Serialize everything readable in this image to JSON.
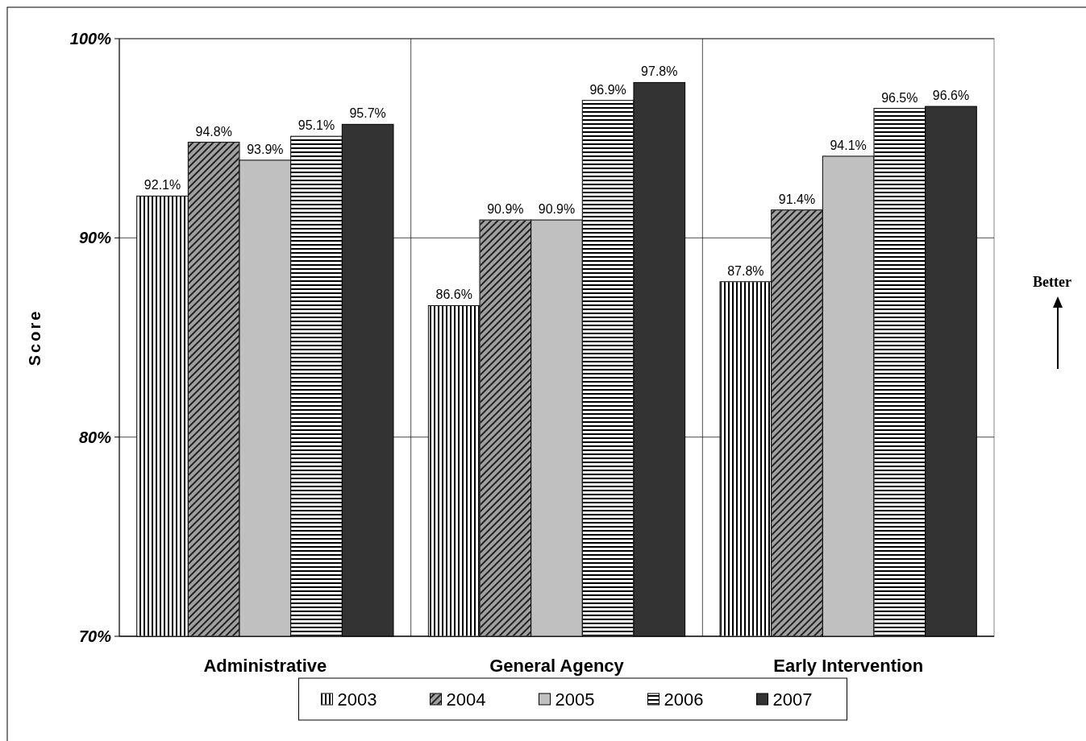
{
  "chart_data": {
    "type": "bar",
    "ylabel": "Score",
    "categories": [
      "Administrative",
      "General Agency",
      "Early Intervention"
    ],
    "series": [
      {
        "name": "2003",
        "color": "#ffffff",
        "values": [
          92.1,
          86.6,
          87.8
        ]
      },
      {
        "name": "2004",
        "color": "#a0a0a0",
        "values": [
          94.8,
          90.9,
          91.4
        ]
      },
      {
        "name": "2005",
        "color": "#c0c0c0",
        "values": [
          93.9,
          90.9,
          94.1
        ]
      },
      {
        "name": "2006",
        "color": "#ffffff",
        "values": [
          95.1,
          96.9,
          96.5
        ]
      },
      {
        "name": "2007",
        "color": "#333333",
        "values": [
          95.7,
          97.8,
          96.6
        ]
      }
    ],
    "ylim": [
      70,
      100
    ],
    "yticks": [
      {
        "value": 70,
        "label": "70%"
      },
      {
        "value": 80,
        "label": "80%"
      },
      {
        "value": 90,
        "label": "90%"
      },
      {
        "value": 100,
        "label": "100%"
      }
    ],
    "value_labels": [
      [
        "92.1%",
        "94.8%",
        "93.9%",
        "95.1%",
        "95.7%"
      ],
      [
        "86.6%",
        "90.9%",
        "90.9%",
        "96.9%",
        "97.8%"
      ],
      [
        "87.8%",
        "91.4%",
        "94.1%",
        "96.5%",
        "96.6%"
      ]
    ],
    "grid": true,
    "legend": "bottom",
    "annotations": [
      "Better"
    ]
  }
}
